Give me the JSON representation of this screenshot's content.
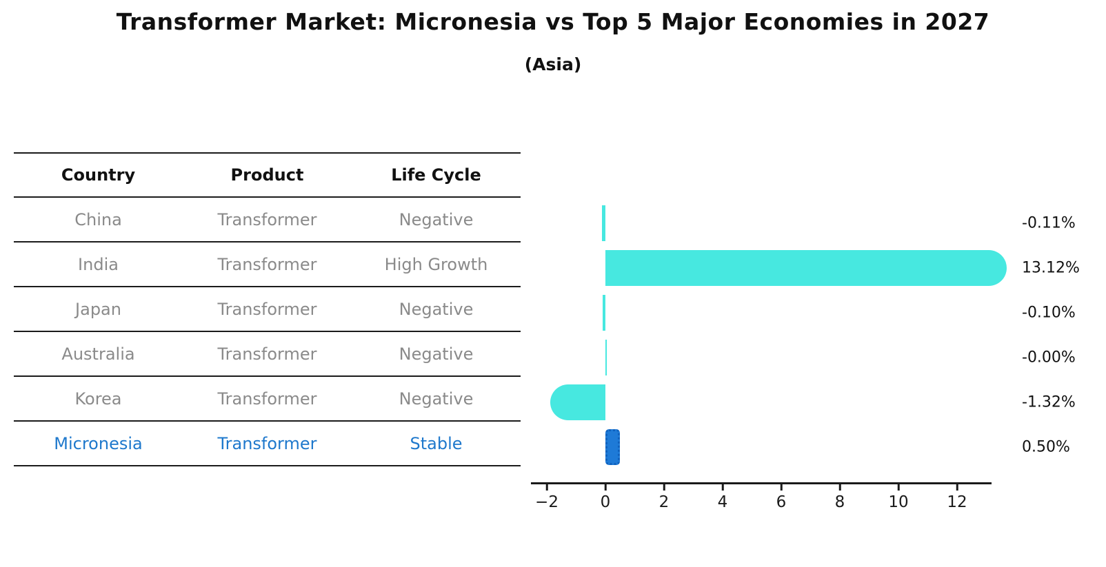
{
  "title": "Transformer Market: Micronesia vs Top 5 Major Economies in 2027",
  "subtitle": "(Asia)",
  "table": {
    "headers": [
      "Country",
      "Product",
      "Life Cycle"
    ],
    "rows": [
      {
        "country": "China",
        "product": "Transformer",
        "life_cycle": "Negative",
        "highlight": false
      },
      {
        "country": "India",
        "product": "Transformer",
        "life_cycle": "High Growth",
        "highlight": false
      },
      {
        "country": "Japan",
        "product": "Transformer",
        "life_cycle": "Negative",
        "highlight": false
      },
      {
        "country": "Australia",
        "product": "Transformer",
        "life_cycle": "Negative",
        "highlight": false
      },
      {
        "country": "Korea",
        "product": "Transformer",
        "life_cycle": "Negative",
        "highlight": false
      },
      {
        "country": "Micronesia",
        "product": "Transformer",
        "life_cycle": "Stable",
        "highlight": true
      }
    ]
  },
  "chart_data": {
    "type": "bar",
    "orientation": "horizontal",
    "title": "Transformer Market: Micronesia vs Top 5 Major Economies in 2027 (Asia)",
    "categories": [
      "China",
      "India",
      "Japan",
      "Australia",
      "Korea",
      "Micronesia"
    ],
    "values": [
      -0.11,
      13.12,
      -0.1,
      -0.0,
      -1.32,
      0.5
    ],
    "value_labels": [
      "-0.11%",
      "13.12%",
      "-0.10%",
      "-0.00%",
      "-1.32%",
      "0.50%"
    ],
    "unit": "percent",
    "x_ticks": [
      "−2",
      "0",
      "2",
      "4",
      "6",
      "8",
      "10",
      "12"
    ],
    "x_tick_values": [
      -2,
      0,
      2,
      4,
      6,
      8,
      10,
      12
    ],
    "xlim": [
      -2.55,
      13.15
    ],
    "grid": false,
    "legend": "none",
    "bar_color": "#47e8e0",
    "highlight_bar_color": "#1e7ad7",
    "highlight_index": 5,
    "highlight_text_color": "#1e78cc"
  }
}
